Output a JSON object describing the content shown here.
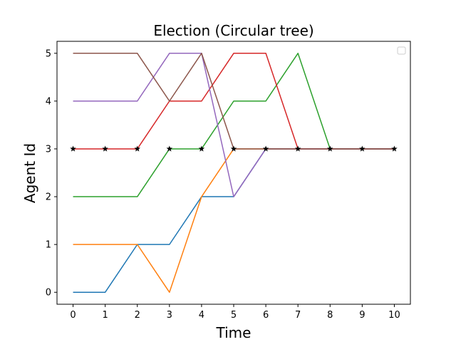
{
  "chart_data": {
    "type": "line",
    "title": "Election (Circular tree)",
    "xlabel": "Time",
    "ylabel": "Agent Id",
    "xlim": [
      -0.5,
      10.5
    ],
    "ylim": [
      -0.25,
      5.25
    ],
    "xticks": [
      "0",
      "1",
      "2",
      "3",
      "4",
      "5",
      "6",
      "7",
      "8",
      "9",
      "10"
    ],
    "yticks": [
      "0",
      "1",
      "2",
      "3",
      "4",
      "5"
    ],
    "grid": false,
    "legend": "top-right (empty)",
    "x": [
      0,
      1,
      2,
      3,
      4,
      5,
      6,
      7,
      8,
      9,
      10
    ],
    "series": [
      {
        "color": "#1f77b4",
        "values": [
          0,
          0,
          1,
          1,
          2,
          2,
          3,
          3,
          3,
          3,
          3
        ]
      },
      {
        "color": "#ff7f0e",
        "values": [
          1,
          1,
          1,
          0,
          2,
          3,
          3,
          3,
          3,
          3,
          3
        ]
      },
      {
        "color": "#2ca02c",
        "values": [
          2,
          2,
          2,
          3,
          3,
          4,
          4,
          5,
          3,
          3,
          3
        ]
      },
      {
        "color": "#d62728",
        "values": [
          3,
          3,
          3,
          4,
          4,
          5,
          5,
          3,
          3,
          3,
          3
        ]
      },
      {
        "color": "#9467bd",
        "values": [
          4,
          4,
          4,
          5,
          5,
          2,
          3,
          3,
          3,
          3,
          3
        ]
      },
      {
        "color": "#8c564b",
        "values": [
          5,
          5,
          5,
          4,
          5,
          3,
          3,
          3,
          3,
          3,
          3
        ]
      }
    ],
    "markers": {
      "color": "#000000",
      "shape": "star",
      "values": [
        3,
        3,
        3,
        3,
        3,
        3,
        3,
        3,
        3,
        3,
        3
      ]
    }
  }
}
